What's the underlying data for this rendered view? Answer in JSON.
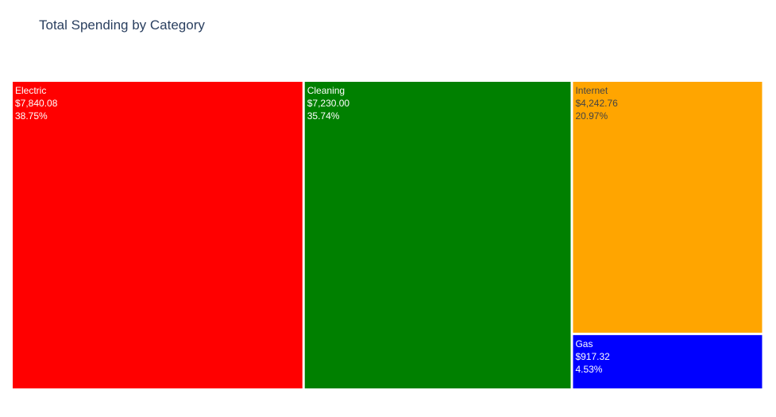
{
  "chart_data": {
    "type": "treemap",
    "title": "Total Spending by Category",
    "tiles": [
      {
        "label": "Electric",
        "value": 7840.08,
        "value_text": "$7,840.08",
        "percent_text": "38.75%",
        "color": "#ff0000",
        "text_color": "#ffffff"
      },
      {
        "label": "Cleaning",
        "value": 7230.0,
        "value_text": "$7,230.00",
        "percent_text": "35.74%",
        "color": "#008000",
        "text_color": "#ffffff"
      },
      {
        "label": "Internet",
        "value": 4242.76,
        "value_text": "$4,242.76",
        "percent_text": "20.97%",
        "color": "#ffa500",
        "text_color": "#444444"
      },
      {
        "label": "Gas",
        "value": 917.32,
        "value_text": "$917.32",
        "percent_text": "4.53%",
        "color": "#0000ff",
        "text_color": "#ffffff"
      }
    ]
  }
}
